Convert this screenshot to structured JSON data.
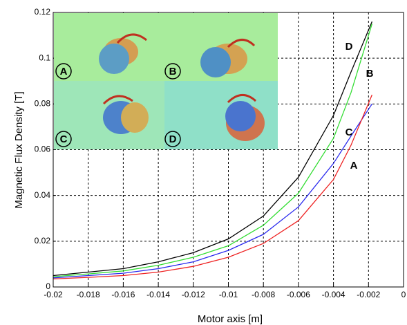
{
  "chart_data": {
    "type": "line",
    "x_label": "Motor axis [m]",
    "y_label": "Magnetic Flux Density [T]",
    "x": [
      -0.02,
      -0.018,
      -0.016,
      -0.014,
      -0.012,
      -0.01,
      -0.008,
      -0.006,
      -0.004,
      -0.003,
      -0.0018
    ],
    "series": [
      {
        "name": "D",
        "color": "#000000",
        "values": [
          0.005,
          0.0065,
          0.008,
          0.011,
          0.015,
          0.021,
          0.031,
          0.048,
          0.075,
          0.094,
          0.116
        ]
      },
      {
        "name": "B",
        "color": "#33dd33",
        "values": [
          0.0045,
          0.0057,
          0.007,
          0.0095,
          0.013,
          0.018,
          0.027,
          0.041,
          0.065,
          0.085,
          0.115
        ]
      },
      {
        "name": "C",
        "color": "#2a2aee",
        "values": [
          0.004,
          0.005,
          0.006,
          0.008,
          0.011,
          0.016,
          0.023,
          0.035,
          0.054,
          0.066,
          0.08
        ]
      },
      {
        "name": "A",
        "color": "#ee2222",
        "values": [
          0.0035,
          0.0042,
          0.005,
          0.0065,
          0.009,
          0.013,
          0.019,
          0.029,
          0.047,
          0.062,
          0.084
        ]
      }
    ],
    "xlim": [
      -0.02,
      0
    ],
    "ylim": [
      0,
      0.12
    ],
    "xticks": [
      -0.02,
      -0.018,
      -0.016,
      -0.014,
      -0.012,
      -0.01,
      -0.008,
      -0.006,
      -0.004,
      -0.002,
      0
    ],
    "yticks": [
      0,
      0.02,
      0.04,
      0.06,
      0.08,
      0.1,
      0.12
    ],
    "grid": true,
    "inset_labels": [
      "A",
      "B",
      "C",
      "D"
    ]
  }
}
